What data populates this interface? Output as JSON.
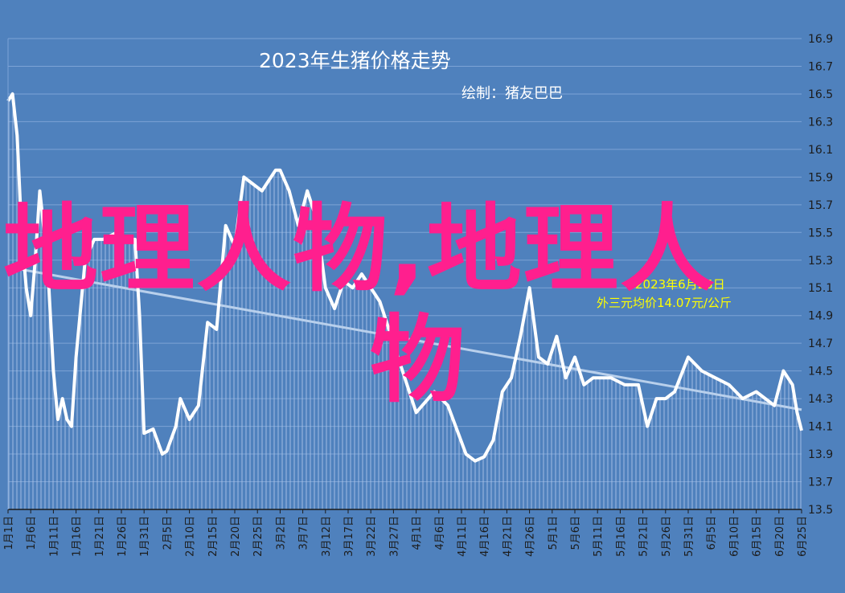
{
  "chart_data": {
    "type": "area",
    "title": "2023年生猪价格走势",
    "subtitle": "绘制：猪友巴巴",
    "annotation_line1": "2023年6月25日",
    "annotation_line2": "外三元均价14.07元/公斤",
    "watermark_line1": "地理人物,地理人",
    "watermark_line2": "物",
    "ylim": [
      13.5,
      16.9
    ],
    "yticks": [
      "13.5",
      "13.7",
      "13.9",
      "14.1",
      "14.3",
      "14.5",
      "14.7",
      "14.9",
      "15.1",
      "15.3",
      "15.5",
      "15.7",
      "15.9",
      "16.1",
      "16.3",
      "16.5",
      "16.7",
      "16.9"
    ],
    "y_axis_position": "right",
    "grid": true,
    "trendline": true,
    "x_tick_labels": [
      "1月1日",
      "1月6日",
      "1月11日",
      "1月16日",
      "1月21日",
      "1月26日",
      "1月31日",
      "2月5日",
      "2月10日",
      "2月15日",
      "2月20日",
      "2月25日",
      "3月2日",
      "3月7日",
      "3月12日",
      "3月17日",
      "3月22日",
      "3月27日",
      "4月1日",
      "4月6日",
      "4月11日",
      "4月16日",
      "4月21日",
      "4月26日",
      "5月1日",
      "5月6日",
      "5月11日",
      "5月16日",
      "5月21日",
      "5月26日",
      "5月31日",
      "6月5日",
      "6月10日",
      "6月15日",
      "6月20日",
      "6月25日"
    ],
    "x_start": "2023-01-01",
    "x_end": "2023-06-25",
    "series": [
      {
        "dates": [
          "2023-01-01",
          "2023-01-02",
          "2023-01-03",
          "2023-01-04",
          "2023-01-05",
          "2023-01-06",
          "2023-01-07",
          "2023-01-08",
          "2023-01-09",
          "2023-01-10",
          "2023-01-11",
          "2023-01-12",
          "2023-01-13",
          "2023-01-14",
          "2023-01-15",
          "2023-01-16",
          "2023-01-18",
          "2023-01-20",
          "2023-01-22",
          "2023-01-25",
          "2023-01-27",
          "2023-01-29",
          "2023-01-30",
          "2023-01-31",
          "2023-02-02",
          "2023-02-04",
          "2023-02-05",
          "2023-02-07",
          "2023-02-08",
          "2023-02-10",
          "2023-02-12",
          "2023-02-14",
          "2023-02-16",
          "2023-02-18",
          "2023-02-20",
          "2023-02-22",
          "2023-02-24",
          "2023-02-26",
          "2023-02-28",
          "2023-03-01",
          "2023-03-02",
          "2023-03-04",
          "2023-03-06",
          "2023-03-08",
          "2023-03-10",
          "2023-03-12",
          "2023-03-14",
          "2023-03-16",
          "2023-03-18",
          "2023-03-20",
          "2023-03-24",
          "2023-03-28",
          "2023-04-01",
          "2023-04-05",
          "2023-04-08",
          "2023-04-12",
          "2023-04-14",
          "2023-04-16",
          "2023-04-18",
          "2023-04-20",
          "2023-04-22",
          "2023-04-24",
          "2023-04-26",
          "2023-04-28",
          "2023-04-30",
          "2023-05-02",
          "2023-05-04",
          "2023-05-06",
          "2023-05-08",
          "2023-05-10",
          "2023-05-14",
          "2023-05-17",
          "2023-05-20",
          "2023-05-22",
          "2023-05-24",
          "2023-05-26",
          "2023-05-28",
          "2023-05-31",
          "2023-06-03",
          "2023-06-06",
          "2023-06-09",
          "2023-06-12",
          "2023-06-15",
          "2023-06-17",
          "2023-06-19",
          "2023-06-21",
          "2023-06-23",
          "2023-06-24",
          "2023-06-25"
        ],
        "values": [
          16.45,
          16.5,
          16.2,
          15.5,
          15.1,
          14.9,
          15.3,
          15.8,
          15.5,
          15.1,
          14.5,
          14.15,
          14.3,
          14.15,
          14.1,
          14.6,
          15.3,
          15.45,
          15.45,
          15.5,
          15.45,
          15.45,
          14.9,
          14.05,
          14.08,
          13.9,
          13.92,
          14.1,
          14.3,
          14.15,
          14.25,
          14.85,
          14.8,
          15.55,
          15.4,
          15.9,
          15.85,
          15.8,
          15.9,
          15.95,
          15.95,
          15.8,
          15.55,
          15.8,
          15.6,
          15.1,
          14.95,
          15.15,
          15.1,
          15.2,
          15.0,
          14.6,
          14.2,
          14.35,
          14.25,
          13.9,
          13.85,
          13.88,
          14.0,
          14.35,
          14.45,
          14.75,
          15.1,
          14.6,
          14.55,
          14.75,
          14.45,
          14.6,
          14.4,
          14.45,
          14.45,
          14.4,
          14.4,
          14.1,
          14.3,
          14.3,
          14.35,
          14.6,
          14.5,
          14.45,
          14.4,
          14.3,
          14.35,
          14.3,
          14.25,
          14.5,
          14.4,
          14.2,
          14.07
        ]
      }
    ],
    "trend_from": 15.25,
    "trend_to": 14.22,
    "colors": {
      "background": "#4f81bd",
      "line": "#ffffff",
      "grid": "#7da3d6",
      "trend": "#b9d0ec",
      "axis_text": "#1c1c1c",
      "title": "#ffffff",
      "annotation": "#ffff00",
      "watermark": "#ff1f8e"
    }
  }
}
